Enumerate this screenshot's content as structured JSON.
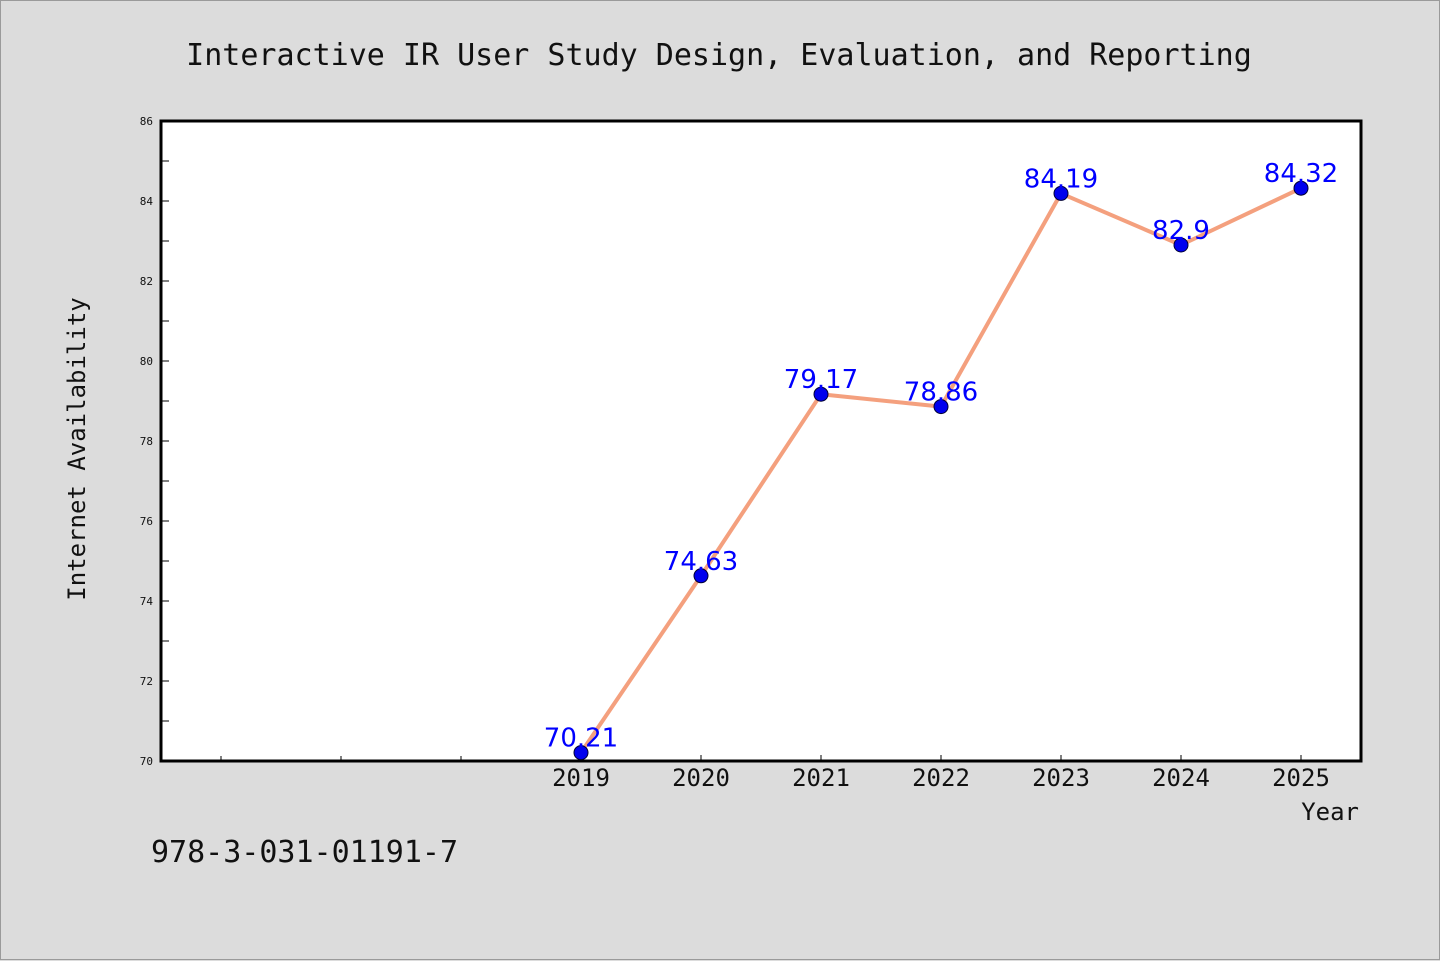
{
  "chart_data": {
    "type": "line",
    "title": "Interactive IR User Study Design, Evaluation, and Reporting",
    "xlabel": "Year",
    "ylabel": "Internet Availability",
    "x_minor_ticks": 3,
    "categories": [
      "2019",
      "2020",
      "2021",
      "2022",
      "2023",
      "2024",
      "2025"
    ],
    "series": [
      {
        "values": [
          70.21,
          74.63,
          79.17,
          78.86,
          84.19,
          82.9,
          84.32
        ],
        "labels": [
          "70.21",
          "74.63",
          "79.17",
          "78.86",
          "84.19",
          "82.9",
          "84.32"
        ],
        "line_color": "#f4a07e",
        "marker_color": "#0000ee"
      }
    ],
    "ylim": [
      70,
      86
    ],
    "yticks": [
      70,
      72,
      74,
      76,
      78,
      80,
      82,
      84,
      86
    ],
    "grid": false,
    "legend": "none"
  },
  "footer": {
    "isbn": "978-3-031-01191-7"
  }
}
